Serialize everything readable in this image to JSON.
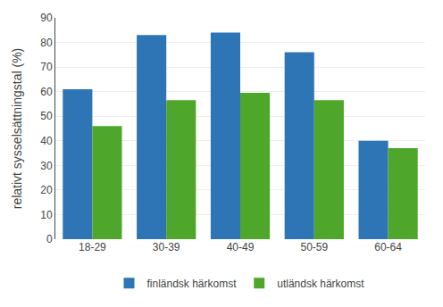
{
  "chart_data": {
    "type": "bar",
    "categories": [
      "18-29",
      "30-39",
      "40-49",
      "50-59",
      "60-64"
    ],
    "series": [
      {
        "name": "finländsk härkomst",
        "color": "#2E75B6",
        "values": [
          61,
          83,
          84,
          76,
          40
        ]
      },
      {
        "name": "utländsk härkomst",
        "color": "#4EA72A",
        "values": [
          46,
          56.5,
          59.5,
          56.5,
          37
        ]
      }
    ],
    "ylabel": "relativt sysselsättningstal (%)",
    "ylim": [
      0,
      90
    ],
    "yticks": [
      0,
      10,
      20,
      30,
      40,
      50,
      60,
      70,
      80,
      90
    ],
    "grid": true,
    "legend": "bottom"
  }
}
